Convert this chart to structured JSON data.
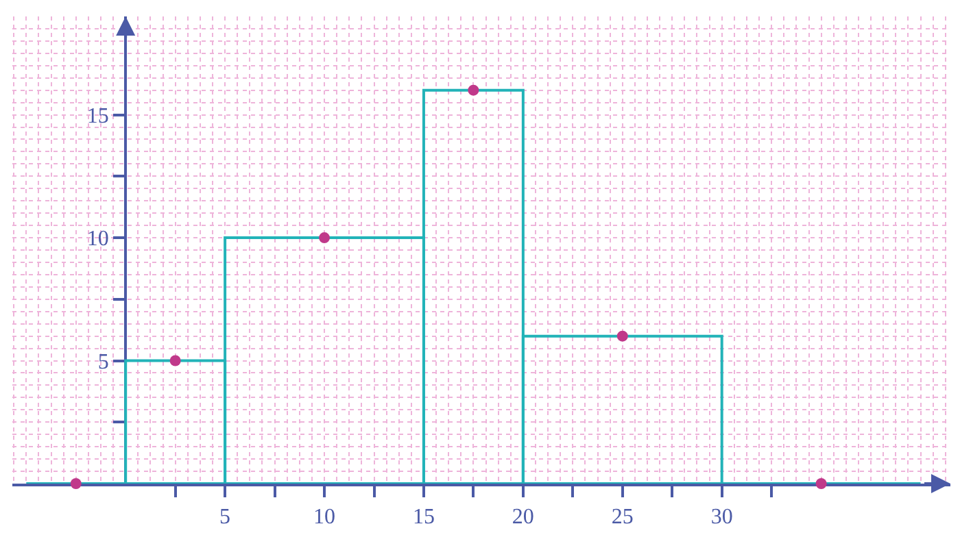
{
  "chart_data": {
    "type": "histogram",
    "series": [
      {
        "color": "#22b3b8",
        "bins": [
          -5,
          0,
          5,
          15,
          20,
          30,
          40
        ],
        "values": [
          0,
          5,
          10,
          16,
          6,
          0
        ]
      },
      {
        "type": "scatter",
        "color": "#c0398a",
        "x": [
          -2.5,
          2.5,
          10,
          17.5,
          25,
          35
        ],
        "values": [
          0,
          5,
          10,
          16,
          6,
          0
        ],
        "marker": "circle"
      }
    ],
    "xlim": [
      -5.7,
      41.5
    ],
    "ylim": [
      0,
      19
    ],
    "xticks": [
      {
        "value": 2.5,
        "label": null
      },
      5,
      {
        "value": 7.5,
        "label": null
      },
      10,
      {
        "value": 12.5,
        "label": null
      },
      15,
      {
        "value": 17.5,
        "label": null
      },
      20,
      {
        "value": 22.5,
        "label": null
      },
      25,
      {
        "value": 27.5,
        "label": null
      },
      30,
      {
        "value": 32.5,
        "label": null
      }
    ],
    "yticks": [
      {
        "value": 2.5,
        "label": null
      },
      5,
      {
        "value": 7.5,
        "label": null
      },
      10,
      {
        "value": 12.5,
        "label": null
      },
      15
    ],
    "grid": true
  }
}
